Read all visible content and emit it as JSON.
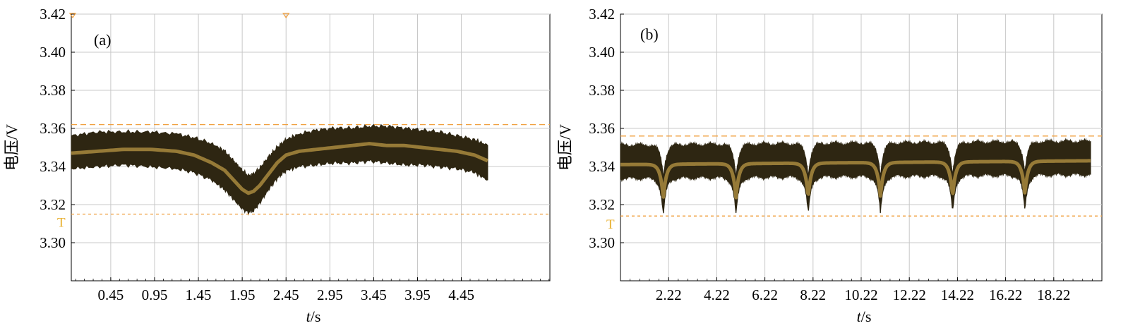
{
  "figure": {
    "panels": [
      {
        "label": "(a)",
        "ylabel": "电压/V",
        "xlabel_italic": "t",
        "xlabel_rest": "/s",
        "trigger_marker": "T"
      },
      {
        "label": "(b)",
        "ylabel": "电压/V",
        "xlabel_italic": "t",
        "xlabel_rest": "/s",
        "trigger_marker": "T"
      }
    ]
  },
  "colors": {
    "envelope": "#2e2612",
    "mean_trace": "#a88a3e",
    "grid": "#c8c8c8",
    "reference_line": "#f0a040",
    "trigger_marker": "#e8b030",
    "axis": "#000000"
  },
  "chart_data": [
    {
      "type": "area",
      "label": "(a)",
      "xlabel": "t/s",
      "ylabel": "电压/V",
      "xlim": [
        0,
        5.46
      ],
      "ylim": [
        3.28,
        3.42
      ],
      "x_ticks": [
        0.45,
        0.95,
        1.45,
        1.95,
        2.45,
        2.95,
        3.45,
        3.95,
        4.45
      ],
      "x_tick_labels": [
        "0.45",
        "0.95",
        "1.45",
        "1.95",
        "2.45",
        "2.95",
        "3.45",
        "3.95",
        "4.45"
      ],
      "y_ticks": [
        3.3,
        3.32,
        3.34,
        3.36,
        3.38,
        3.4,
        3.42
      ],
      "y_tick_labels": [
        "3.30",
        "3.32",
        "3.34",
        "3.36",
        "3.38",
        "3.40",
        "3.42"
      ],
      "grid": true,
      "reference_lines": [
        3.362,
        3.315
      ],
      "series": [
        {
          "role": "envelope",
          "x": [
            0.0,
            0.3,
            0.6,
            0.9,
            1.2,
            1.4,
            1.6,
            1.75,
            1.85,
            1.95,
            2.02,
            2.08,
            2.15,
            2.25,
            2.35,
            2.45,
            2.6,
            2.8,
            3.0,
            3.2,
            3.4,
            3.6,
            3.8,
            4.0,
            4.2,
            4.4,
            4.6,
            4.75
          ],
          "upper": [
            3.356,
            3.358,
            3.358,
            3.358,
            3.357,
            3.355,
            3.352,
            3.348,
            3.343,
            3.338,
            3.335,
            3.336,
            3.339,
            3.345,
            3.35,
            3.354,
            3.357,
            3.359,
            3.36,
            3.36,
            3.361,
            3.361,
            3.36,
            3.359,
            3.358,
            3.356,
            3.354,
            3.351
          ],
          "lower": [
            3.339,
            3.34,
            3.341,
            3.34,
            3.339,
            3.337,
            3.333,
            3.328,
            3.323,
            3.318,
            3.316,
            3.317,
            3.321,
            3.328,
            3.334,
            3.338,
            3.34,
            3.341,
            3.342,
            3.342,
            3.343,
            3.342,
            3.341,
            3.341,
            3.34,
            3.339,
            3.337,
            3.333
          ]
        },
        {
          "role": "mean",
          "x": [
            0.0,
            0.3,
            0.6,
            0.9,
            1.2,
            1.4,
            1.6,
            1.75,
            1.85,
            1.95,
            2.02,
            2.08,
            2.15,
            2.25,
            2.35,
            2.45,
            2.6,
            2.8,
            3.0,
            3.2,
            3.4,
            3.6,
            3.8,
            4.0,
            4.2,
            4.4,
            4.6,
            4.75
          ],
          "y": [
            3.347,
            3.348,
            3.349,
            3.349,
            3.348,
            3.346,
            3.342,
            3.338,
            3.333,
            3.328,
            3.326,
            3.327,
            3.33,
            3.336,
            3.342,
            3.346,
            3.348,
            3.349,
            3.35,
            3.351,
            3.352,
            3.351,
            3.351,
            3.35,
            3.349,
            3.348,
            3.346,
            3.343
          ]
        }
      ]
    },
    {
      "type": "area",
      "label": "(b)",
      "xlabel": "t/s",
      "ylabel": "电压/V",
      "xlim": [
        0.22,
        20.22
      ],
      "ylim": [
        3.28,
        3.42
      ],
      "x_ticks": [
        2.22,
        4.22,
        6.22,
        8.22,
        10.22,
        12.22,
        14.22,
        16.22,
        18.22
      ],
      "x_tick_labels": [
        "2.22",
        "4.22",
        "6.22",
        "8.22",
        "10.22",
        "12.22",
        "14.22",
        "16.22",
        "18.22"
      ],
      "y_ticks": [
        3.3,
        3.32,
        3.34,
        3.36,
        3.38,
        3.4,
        3.42
      ],
      "y_tick_labels": [
        "3.30",
        "3.32",
        "3.34",
        "3.36",
        "3.38",
        "3.40",
        "3.42"
      ],
      "grid": true,
      "reference_lines": [
        3.356,
        3.314
      ],
      "baseline": 3.334,
      "series": [
        {
          "role": "envelope",
          "x_start": 0.22,
          "x_end": 19.75,
          "upper_base": 3.351,
          "lower_base": 3.334,
          "mean_base": 3.341,
          "dips": [
            {
              "t": 2.0,
              "min": 3.314
            },
            {
              "t": 5.02,
              "min": 3.314
            },
            {
              "t": 8.02,
              "min": 3.314
            },
            {
              "t": 11.02,
              "min": 3.314
            },
            {
              "t": 14.02,
              "min": 3.314
            },
            {
              "t": 17.02,
              "min": 3.315
            }
          ]
        }
      ]
    }
  ]
}
